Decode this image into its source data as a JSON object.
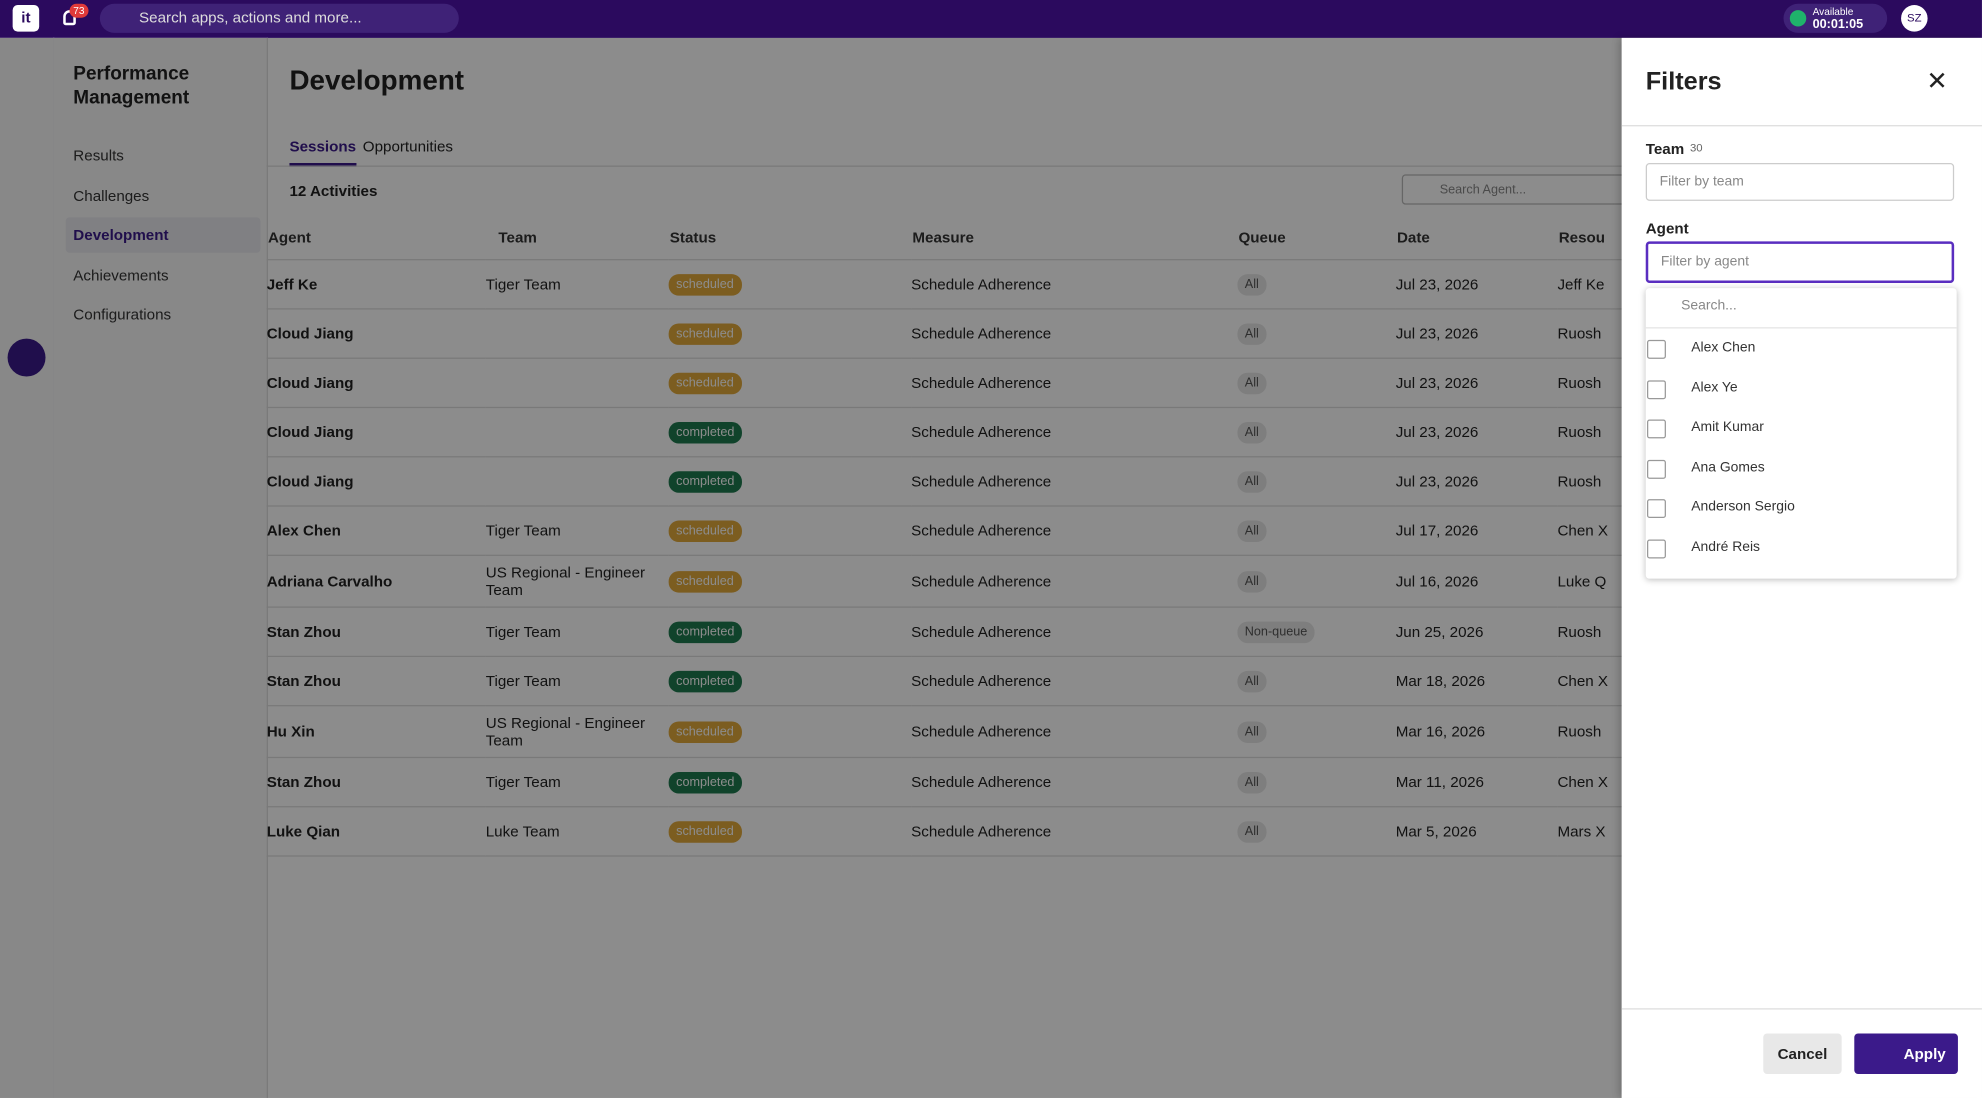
{
  "topbar": {
    "logo": "it",
    "notifications": "73",
    "search": "Search apps, actions and more...",
    "status": "Available",
    "timer": "00:01:05",
    "avatar": "SZ"
  },
  "sidebar": {
    "title": "Performance Management",
    "items": [
      "Results",
      "Challenges",
      "Development",
      "Achievements",
      "Configurations"
    ],
    "active": 2
  },
  "page": {
    "title": "Development",
    "tabs": [
      "Sessions",
      "Opportunities"
    ],
    "count": "12 Activities",
    "search": "Search Agent..."
  },
  "table": {
    "headers": [
      "Agent",
      "Team",
      "Status",
      "Measure",
      "Queue",
      "Date",
      "Resou"
    ],
    "rows": [
      [
        "Jeff Ke",
        "Tiger Team",
        "scheduled",
        "Schedule Adherence",
        "All",
        "Jul 23, 2026",
        "Jeff Ke"
      ],
      [
        "Cloud Jiang",
        null,
        "scheduled",
        "Schedule Adherence",
        "All",
        "Jul 23, 2026",
        "Ruosh"
      ],
      [
        "Cloud Jiang",
        null,
        "scheduled",
        "Schedule Adherence",
        "All",
        "Jul 23, 2026",
        "Ruosh"
      ],
      [
        "Cloud Jiang",
        null,
        "completed",
        "Schedule Adherence",
        "All",
        "Jul 23, 2026",
        "Ruosh"
      ],
      [
        "Cloud Jiang",
        null,
        "completed",
        "Schedule Adherence",
        "All",
        "Jul 23, 2026",
        "Ruosh"
      ],
      [
        "Alex Chen",
        "Tiger Team",
        "scheduled",
        "Schedule Adherence",
        "All",
        "Jul 17, 2026",
        "Chen X"
      ],
      [
        "Adriana Carvalho",
        "US Regional - Engineer Team",
        "scheduled",
        "Schedule Adherence",
        "All",
        "Jul 16, 2026",
        "Luke Q"
      ],
      [
        "Stan Zhou",
        "Tiger Team",
        "completed",
        "Schedule Adherence",
        "Non-queue",
        "Jun 25, 2026",
        "Ruosh"
      ],
      [
        "Stan Zhou",
        "Tiger Team",
        "completed",
        "Schedule Adherence",
        "All",
        "Mar 18, 2026",
        "Chen X"
      ],
      [
        "Hu Xin",
        "US Regional - Engineer Team",
        "scheduled",
        "Schedule Adherence",
        "All",
        "Mar 16, 2026",
        "Ruosh"
      ],
      [
        "Stan Zhou",
        "Tiger Team",
        "completed",
        "Schedule Adherence",
        "All",
        "Mar 11, 2026",
        "Chen X"
      ],
      [
        "Luke Qian",
        "Luke Team",
        "scheduled",
        "Schedule Adherence",
        "All",
        "Mar 5, 2026",
        "Mars X"
      ]
    ]
  },
  "filters": {
    "title": "Filters",
    "team_label": "Team",
    "team_count": "30",
    "team_placeholder": "Filter by team",
    "agent_label": "Agent",
    "agent_placeholder": "Filter by agent",
    "agent_search": "Search...",
    "options": [
      "Alex Chen",
      "Alex Ye",
      "Amit Kumar",
      "Ana Gomes",
      "Anderson Sergio",
      "André Reis"
    ],
    "cancel": "Cancel",
    "apply": "Apply"
  }
}
